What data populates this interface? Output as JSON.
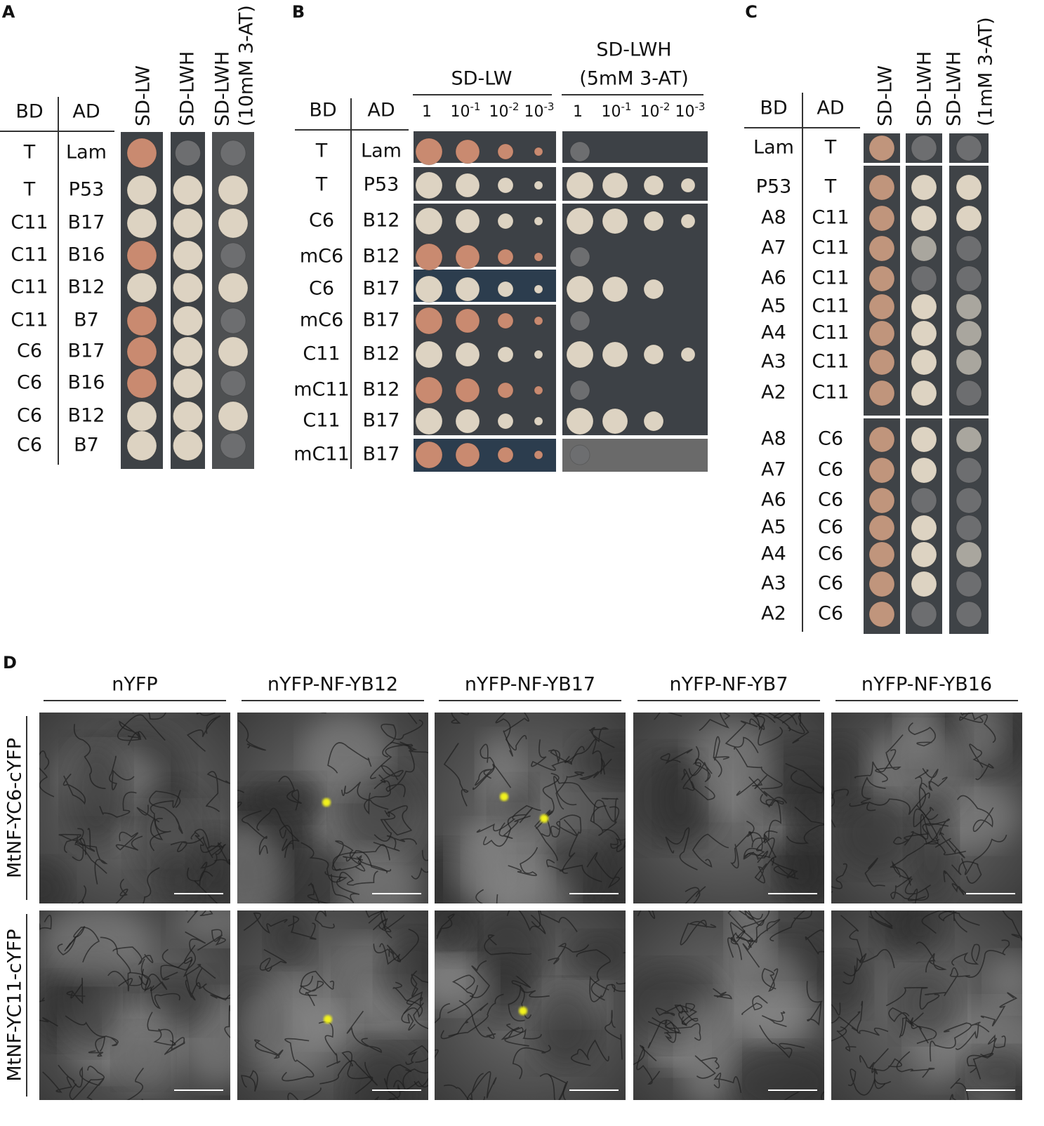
{
  "panel_a": {
    "label": "A",
    "headers": {
      "bd": "BD",
      "ad": "AD"
    },
    "columns": [
      [
        "SD-LW"
      ],
      [
        "SD-LWH"
      ],
      [
        "SD-LWH",
        "(10mM 3-AT)"
      ]
    ],
    "rows": [
      [
        "T",
        "Lam"
      ],
      [
        "T",
        "P53"
      ],
      [
        "C11",
        "B17"
      ],
      [
        "C11",
        "B16"
      ],
      [
        "C11",
        "B12"
      ],
      [
        "C11",
        "B7"
      ],
      [
        "C6",
        "B17"
      ],
      [
        "C6",
        "B16"
      ],
      [
        "C6",
        "B12"
      ],
      [
        "C6",
        "B7"
      ]
    ]
  },
  "panel_b": {
    "label": "B",
    "headers": {
      "bd": "BD",
      "ad": "AD"
    },
    "groups": [
      [
        "SD-LW"
      ],
      [
        "SD-LWH",
        "(5mM 3-AT)"
      ]
    ],
    "dilutions": [
      [
        "1"
      ],
      [
        "10",
        "-1"
      ],
      [
        "10",
        "-2"
      ],
      [
        "10",
        "-3"
      ]
    ],
    "rows": [
      [
        "T",
        "Lam"
      ],
      [
        "T",
        "P53"
      ],
      [
        "C6",
        "B12"
      ],
      [
        "mC6",
        "B12"
      ],
      [
        "C6",
        "B17"
      ],
      [
        "mC6",
        "B17"
      ],
      [
        "C11",
        "B12"
      ],
      [
        "mC11",
        "B12"
      ],
      [
        "C11",
        "B17"
      ],
      [
        "mC11",
        "B17"
      ]
    ]
  },
  "panel_c": {
    "label": "C",
    "headers": {
      "bd": "BD",
      "ad": "AD"
    },
    "columns": [
      [
        "SD-LW"
      ],
      [
        "SD-LWH"
      ],
      [
        "SD-LWH",
        "(1mM 3-AT)"
      ]
    ],
    "rows": [
      [
        "Lam",
        "T"
      ],
      [
        "P53",
        "T"
      ],
      [
        "A8",
        "C11"
      ],
      [
        "A7",
        "C11"
      ],
      [
        "A6",
        "C11"
      ],
      [
        "A5",
        "C11"
      ],
      [
        "A4",
        "C11"
      ],
      [
        "A3",
        "C11"
      ],
      [
        "A2",
        "C11"
      ],
      [
        "A8",
        "C6"
      ],
      [
        "A7",
        "C6"
      ],
      [
        "A6",
        "C6"
      ],
      [
        "A5",
        "C6"
      ],
      [
        "A4",
        "C6"
      ],
      [
        "A3",
        "C6"
      ],
      [
        "A2",
        "C6"
      ]
    ]
  },
  "panel_d": {
    "label": "D",
    "columns": [
      "nYFP",
      "nYFP-NF-YB12",
      "nYFP-NF-YB17",
      "nYFP-NF-YB7",
      "nYFP-NF-YB16"
    ],
    "rows": [
      "MtNF-YC6-cYFP",
      "MtNF-YC11-cYFP"
    ]
  }
}
